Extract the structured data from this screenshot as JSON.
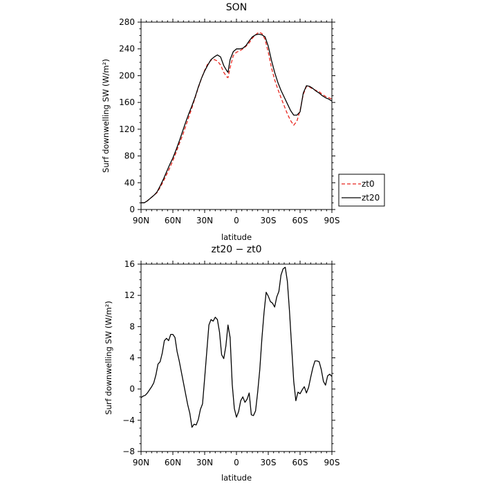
{
  "chart_data": [
    {
      "type": "line",
      "title": "SON",
      "xlabel": "latitude",
      "ylabel": "Surf downwelling SW (W/m²)",
      "xlim": [
        90,
        -90
      ],
      "ylim": [
        0,
        280
      ],
      "x_ticks": [
        90,
        60,
        30,
        0,
        -30,
        -60,
        -90
      ],
      "x_tick_labels": [
        "90N",
        "60N",
        "30N",
        "0",
        "30S",
        "60S",
        "90S"
      ],
      "y_ticks": [
        0,
        40,
        80,
        120,
        160,
        200,
        240,
        280
      ],
      "y_tick_labels": [
        "0",
        "40",
        "80",
        "120",
        "160",
        "200",
        "240",
        "280"
      ],
      "legend_position": "outside-right",
      "series": [
        {
          "name": "zt0",
          "color": "#e8231b",
          "dash": "dashed",
          "x": [
            90,
            87,
            84,
            81,
            78,
            75,
            72,
            69,
            66,
            63,
            60,
            57,
            54,
            51,
            48,
            45,
            42,
            39,
            36,
            33,
            30,
            27,
            24,
            21,
            18,
            15,
            12,
            9,
            8,
            6,
            3,
            0,
            -3,
            -6,
            -9,
            -12,
            -15,
            -18,
            -21,
            -24,
            -27,
            -30,
            -33,
            -36,
            -39,
            -42,
            -45,
            -48,
            -51,
            -54,
            -57,
            -60,
            -63,
            -66,
            -69,
            -72,
            -75,
            -78,
            -81,
            -84,
            -87,
            -90
          ],
          "y": [
            10,
            10,
            13,
            17,
            21,
            25,
            33,
            42,
            52,
            62,
            73,
            85,
            98,
            110,
            124,
            138,
            152,
            167,
            182,
            196,
            208,
            218,
            223,
            224,
            222,
            216,
            205,
            198,
            197,
            212,
            230,
            235,
            237,
            240,
            244,
            249,
            256,
            261,
            265,
            263,
            254,
            235,
            212,
            194,
            180,
            167,
            155,
            143,
            133,
            126,
            132,
            148,
            172,
            184,
            183,
            180,
            178,
            176,
            172,
            169,
            167,
            165
          ]
        },
        {
          "name": "zt20",
          "color": "#000000",
          "dash": "solid",
          "x": [
            90,
            87,
            84,
            81,
            78,
            75,
            72,
            69,
            66,
            63,
            60,
            57,
            54,
            51,
            48,
            45,
            42,
            39,
            36,
            33,
            30,
            27,
            24,
            21,
            18,
            15,
            12,
            9,
            8,
            6,
            3,
            0,
            -3,
            -6,
            -9,
            -12,
            -15,
            -18,
            -21,
            -24,
            -27,
            -30,
            -33,
            -36,
            -39,
            -42,
            -45,
            -48,
            -51,
            -54,
            -57,
            -60,
            -63,
            -66,
            -69,
            -72,
            -75,
            -78,
            -81,
            -84,
            -87,
            -90
          ],
          "y": [
            10,
            10,
            13,
            17,
            21,
            26,
            35,
            45,
            56,
            67,
            77,
            89,
            102,
            116,
            130,
            143,
            155,
            168,
            183,
            196,
            207,
            216,
            224,
            228,
            231,
            228,
            215,
            207,
            205,
            224,
            236,
            240,
            240,
            241,
            245,
            252,
            258,
            261,
            262,
            261,
            258,
            244,
            223,
            205,
            190,
            178,
            168,
            158,
            148,
            141,
            141,
            146,
            174,
            185,
            184,
            181,
            177,
            174,
            170,
            167,
            165,
            162
          ]
        }
      ]
    },
    {
      "type": "line",
      "title": "zt20 − zt0",
      "xlabel": "latitude",
      "ylabel": "Surf downwelling SW (W/m²)",
      "xlim": [
        90,
        -90
      ],
      "ylim": [
        -8,
        16
      ],
      "x_ticks": [
        90,
        60,
        30,
        0,
        -30,
        -60,
        -90
      ],
      "x_tick_labels": [
        "90N",
        "60N",
        "30N",
        "0",
        "30S",
        "60S",
        "90S"
      ],
      "y_ticks": [
        -8,
        -4,
        0,
        4,
        8,
        12,
        16
      ],
      "y_tick_labels": [
        "−8",
        "−4",
        "0",
        "4",
        "8",
        "12",
        "16"
      ],
      "series": [
        {
          "color": "#000000",
          "dash": "solid",
          "x": [
            90,
            88,
            86,
            84,
            82,
            80,
            78,
            76,
            74,
            72,
            70,
            68,
            66,
            64,
            62,
            60,
            58,
            56,
            54,
            52,
            50,
            48,
            46,
            44,
            42,
            40,
            38,
            36,
            34,
            32,
            30,
            28,
            26,
            24,
            22,
            20,
            18,
            16,
            14,
            12,
            10,
            8,
            6,
            4,
            2,
            0,
            -2,
            -4,
            -6,
            -8,
            -10,
            -12,
            -14,
            -16,
            -18,
            -20,
            -22,
            -24,
            -26,
            -28,
            -30,
            -32,
            -34,
            -36,
            -38,
            -40,
            -42,
            -44,
            -46,
            -48,
            -50,
            -52,
            -54,
            -56,
            -58,
            -60,
            -62,
            -64,
            -66,
            -68,
            -70,
            -72,
            -74,
            -76,
            -78,
            -80,
            -82,
            -84,
            -86,
            -88,
            -90
          ],
          "y": [
            -1.1,
            -0.9,
            -0.8,
            -0.5,
            -0.1,
            0.3,
            0.8,
            1.8,
            3.2,
            3.5,
            4.6,
            6.2,
            6.5,
            6.2,
            7.0,
            7.0,
            6.6,
            4.8,
            3.6,
            2.2,
            0.8,
            -0.6,
            -2.0,
            -3.1,
            -4.9,
            -4.5,
            -4.6,
            -3.9,
            -2.6,
            -1.9,
            1.4,
            4.8,
            8.2,
            8.9,
            8.7,
            9.2,
            8.9,
            7.3,
            4.4,
            3.9,
            5.5,
            8.2,
            6.6,
            0.6,
            -2.5,
            -3.6,
            -2.9,
            -1.5,
            -1.0,
            -1.7,
            -1.3,
            -0.5,
            -3.3,
            -3.4,
            -2.8,
            -0.4,
            2.5,
            6.5,
            9.8,
            12.4,
            11.9,
            11.2,
            11.0,
            10.5,
            11.8,
            12.5,
            14.6,
            15.4,
            15.6,
            13.8,
            10.0,
            5.5,
            1.0,
            -1.5,
            -0.4,
            -0.6,
            -0.1,
            0.3,
            -0.5,
            0.2,
            1.5,
            2.7,
            3.6,
            3.6,
            3.5,
            2.5,
            1.0,
            0.5,
            1.7,
            1.9,
            1.6
          ]
        }
      ]
    }
  ]
}
